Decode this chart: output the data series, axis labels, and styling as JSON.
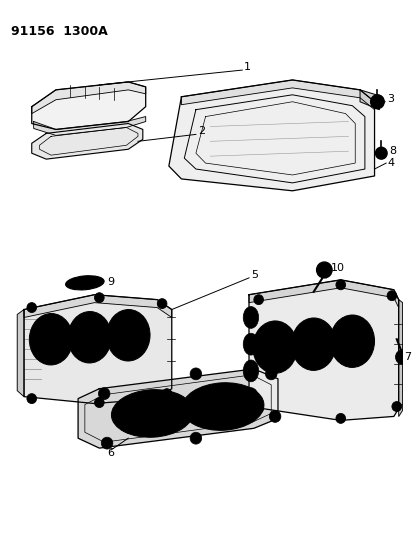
{
  "title": "91156  1300A",
  "background_color": "#ffffff",
  "line_color": "#000000",
  "fig_width": 4.14,
  "fig_height": 5.33,
  "dpi": 100
}
